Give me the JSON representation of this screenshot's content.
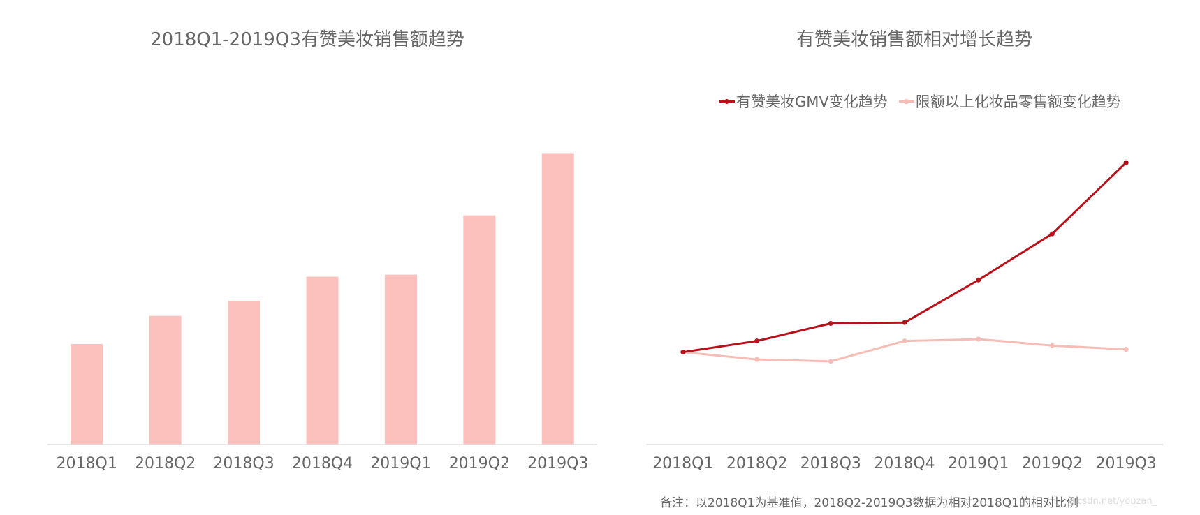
{
  "colors": {
    "bar": "#fcc0bd",
    "gmv_line": "#b8111a",
    "retail_line": "#f6bdb6",
    "axis": "#dddddd",
    "text": "#666666"
  },
  "left_chart": {
    "title": "2018Q1-2019Q3有赞美妆销售额趋势"
  },
  "right_chart": {
    "title": "有赞美妆销售额相对增长趋势",
    "legend": [
      {
        "label": "有赞美妆GMV变化趋势"
      },
      {
        "label": "限额以上化妆品零售额变化趋势"
      }
    ],
    "note": "备注：以2018Q1为基准值，2018Q2-2019Q3数据为相对2018Q1的相对比例"
  },
  "watermark": "g.csdn.net/youzan_",
  "chart_data": [
    {
      "type": "bar",
      "title": "2018Q1-2019Q3有赞美妆销售额趋势",
      "categories": [
        "2018Q1",
        "2018Q2",
        "2018Q3",
        "2018Q4",
        "2019Q1",
        "2019Q2",
        "2019Q3"
      ],
      "values": [
        1.0,
        1.28,
        1.43,
        1.67,
        1.69,
        2.28,
        2.9
      ],
      "ylim": [
        0,
        3.0
      ],
      "grid": false,
      "ytick_labels": false
    },
    {
      "type": "line",
      "title": "有赞美妆销售额相对增长趋势",
      "categories": [
        "2018Q1",
        "2018Q2",
        "2018Q3",
        "2018Q4",
        "2019Q1",
        "2019Q2",
        "2019Q3"
      ],
      "series": [
        {
          "name": "有赞美妆GMV变化趋势",
          "values": [
            1.0,
            1.12,
            1.31,
            1.32,
            1.78,
            2.28,
            3.05
          ]
        },
        {
          "name": "限额以上化妆品零售额变化趋势",
          "values": [
            1.0,
            0.92,
            0.9,
            1.12,
            1.14,
            1.07,
            1.03
          ]
        }
      ],
      "ylim": [
        0,
        3.3
      ],
      "legend_position": "top",
      "grid": false,
      "ytick_labels": false
    }
  ]
}
